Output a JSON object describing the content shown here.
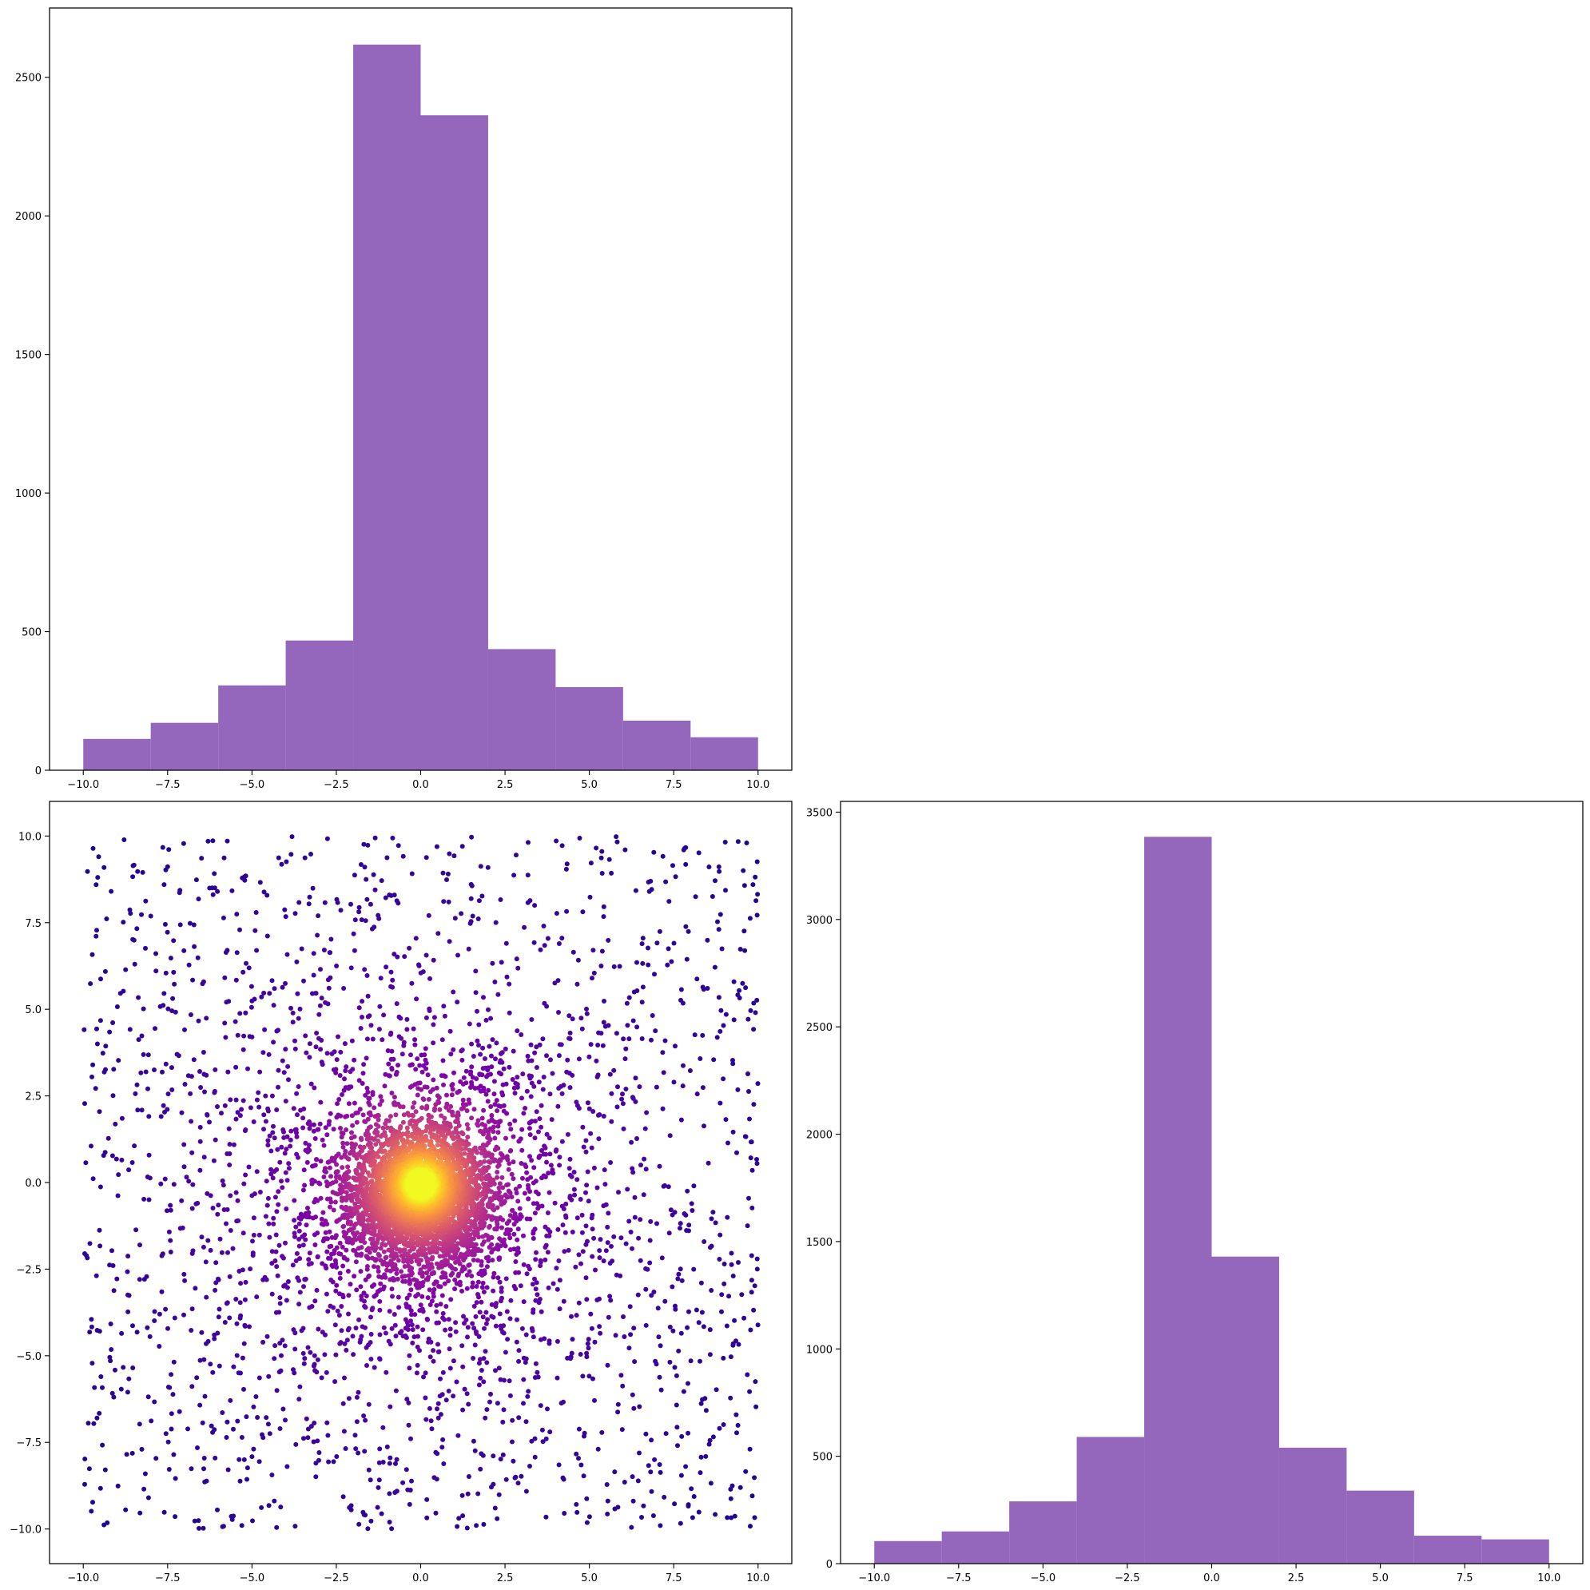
{
  "chart_data": [
    {
      "id": "hist-x",
      "type": "bar",
      "title": "",
      "xlabel": "",
      "ylabel": "",
      "bar_color": "#9467bd",
      "bin_edges": [
        -10,
        -8,
        -6,
        -4,
        -2,
        0,
        2,
        4,
        6,
        8,
        10
      ],
      "values": [
        113,
        171,
        306,
        468,
        2618,
        2363,
        437,
        300,
        179,
        119
      ],
      "xlim": [
        -11,
        11
      ],
      "ylim": [
        0,
        2750
      ],
      "xticks": [
        -10,
        -7.5,
        -5,
        -2.5,
        0,
        2.5,
        5,
        7.5,
        10
      ],
      "xtick_labels": [
        "−10.0",
        "−7.5",
        "−5.0",
        "−2.5",
        "0.0",
        "2.5",
        "5.0",
        "7.5",
        "10.0"
      ],
      "yticks": [
        0,
        500,
        1000,
        1500,
        2000,
        2500
      ],
      "ytick_labels": [
        "0",
        "500",
        "1000",
        "1500",
        "2000",
        "2500"
      ],
      "grid": false,
      "legend": "none"
    },
    {
      "id": "scatter-xy",
      "type": "scatter",
      "title": "",
      "xlabel": "",
      "ylabel": "",
      "colormap": "plasma",
      "color_by": "point density",
      "xlim": [
        -11,
        11
      ],
      "ylim": [
        -11,
        11
      ],
      "xticks": [
        -10,
        -7.5,
        -5,
        -2.5,
        0,
        2.5,
        5,
        7.5,
        10
      ],
      "xtick_labels": [
        "−10.0",
        "−7.5",
        "−5.0",
        "−2.5",
        "0.0",
        "2.5",
        "5.0",
        "7.5",
        "10.0"
      ],
      "yticks": [
        -10,
        -7.5,
        -5,
        -2.5,
        0,
        2.5,
        5,
        7.5,
        10
      ],
      "ytick_labels": [
        "−10.0",
        "−7.5",
        "−5.0",
        "−2.5",
        "0.0",
        "2.5",
        "5.0",
        "7.5",
        "10.0"
      ],
      "distribution": "mixture centered at (0, 0): dense core with std ≈ 1 plus a uniform spread over [−10, 10] × [−10, 10]",
      "grid": false,
      "legend": "none"
    },
    {
      "id": "hist-y",
      "type": "bar",
      "title": "",
      "xlabel": "",
      "ylabel": "",
      "bar_color": "#9467bd",
      "bin_edges": [
        -10,
        -8,
        -6,
        -4,
        -2,
        0,
        2,
        4,
        6,
        8,
        10
      ],
      "values": [
        105,
        150,
        290,
        590,
        3385,
        1430,
        540,
        340,
        130,
        113
      ],
      "xlim": [
        -11,
        11
      ],
      "ylim": [
        0,
        3550
      ],
      "xticks": [
        -10,
        -7.5,
        -5,
        -2.5,
        0,
        2.5,
        5,
        7.5,
        10
      ],
      "xtick_labels": [
        "−10.0",
        "−7.5",
        "−5.0",
        "−2.5",
        "0.0",
        "2.5",
        "5.0",
        "7.5",
        "10.0"
      ],
      "yticks": [
        0,
        500,
        1000,
        1500,
        2000,
        2500,
        3000,
        3500
      ],
      "ytick_labels": [
        "0",
        "500",
        "1000",
        "1500",
        "2000",
        "2500",
        "3000",
        "3500"
      ],
      "grid": false,
      "legend": "none"
    }
  ]
}
